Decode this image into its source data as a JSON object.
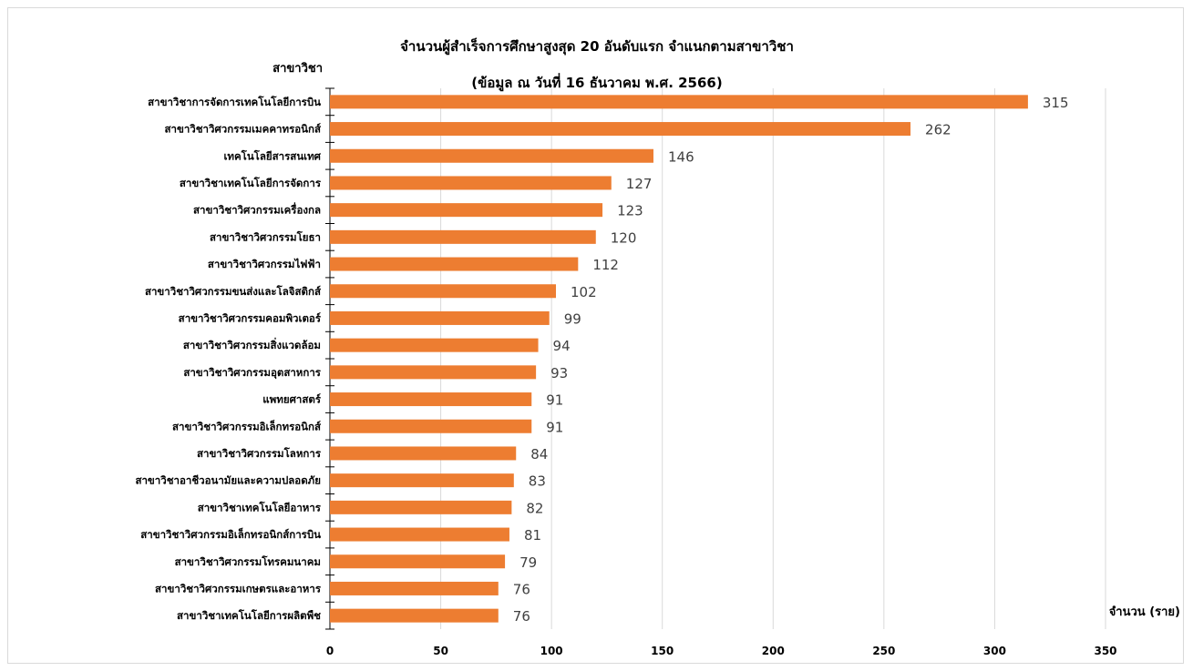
{
  "chart_data": {
    "type": "bar",
    "orientation": "horizontal",
    "title": "จำนวนผู้สำเร็จการศึกษาสูงสุด 20 อันดับแรก จำแนกตามสาขาวิชา",
    "subtitle": "(ข้อมูล ณ วันที่ 16 ธันวาคม พ.ศ. 2566)",
    "xlabel": "จำนวน (ราย)",
    "ylabel": "สาขาวิชา",
    "xlim": [
      0,
      350
    ],
    "xticks": [
      0,
      50,
      100,
      150,
      200,
      250,
      300,
      350
    ],
    "grid": true,
    "bar_color": "#ED7D31",
    "categories": [
      "สาขาวิชาการจัดการเทคโนโลยีการบิน",
      "สาขาวิชาวิศวกรรมเมคคาทรอนิกส์",
      "เทคโนโลยีสารสนเทศ",
      "สาขาวิชาเทคโนโลยีการจัดการ",
      "สาขาวิชาวิศวกรรมเครื่องกล",
      "สาขาวิชาวิศวกรรมโยธา",
      "สาขาวิชาวิศวกรรมไฟฟ้า",
      "สาขาวิชาวิศวกรรมขนส่งและโลจิสติกส์",
      "สาขาวิชาวิศวกรรมคอมพิวเตอร์",
      "สาขาวิชาวิศวกรรมสิ่งแวดล้อม",
      "สาขาวิชาวิศวกรรมอุตสาหการ",
      "แพทยศาสตร์",
      "สาขาวิชาวิศวกรรมอิเล็กทรอนิกส์",
      "สาขาวิชาวิศวกรรมโลหการ",
      "สาขาวิชาอาชีวอนามัยและความปลอดภัย",
      "สาขาวิชาเทคโนโลยีอาหาร",
      "สาขาวิชาวิศวกรรมอิเล็กทรอนิกส์การบิน",
      "สาขาวิชาวิศวกรรมโทรคมนาคม",
      "สาขาวิชาวิศวกรรมเกษตรและอาหาร",
      "สาขาวิชาเทคโนโลยีการผลิตพืช"
    ],
    "values": [
      315,
      262,
      146,
      127,
      123,
      120,
      112,
      102,
      99,
      94,
      93,
      91,
      91,
      84,
      83,
      82,
      81,
      79,
      76,
      76
    ]
  }
}
